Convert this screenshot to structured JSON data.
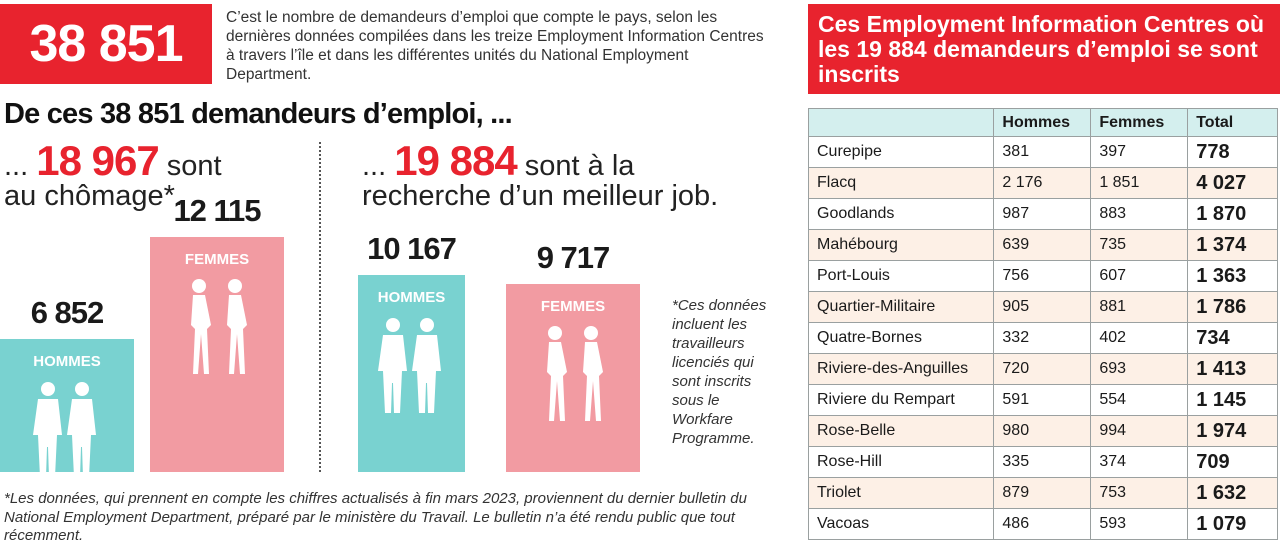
{
  "hero": {
    "number": "38 851",
    "intro": "C’est le nombre de demandeurs d’emploi que compte le pays, selon les dernières données compilées dans les treize Employment Information Centres à travers l’île et dans les différentes unités du National Employment Department."
  },
  "headline": "De ces 38 851 demandeurs d’emploi, ...",
  "left_group": {
    "prefix": "... ",
    "number": "18 967",
    "line1_suffix": " sont",
    "line2": "au chômage*."
  },
  "right_group": {
    "prefix": "... ",
    "number": "19 884",
    "line1_suffix": " sont à la",
    "line2": "recherche d’un meilleur job."
  },
  "note": "*Ces données incluent les travailleurs licenciés qui sont inscrits sous le Workfare Programme.",
  "footnote": "*Les données, qui prennent en compte les chiffres actualisés à fin mars 2023, proviennent du dernier bulletin du National Employment Department, préparé par le ministère du Travail. Le bulletin n’a été rendu public que tout récemment.",
  "table": {
    "title": "Ces Employment Information Centres où les 19 884 demandeurs d’emploi se sont inscrits",
    "headers": [
      "",
      "Hommes",
      "Femmes",
      "Total"
    ]
  },
  "colors": {
    "red": "#e8232e",
    "teal": "#79d2d0",
    "pink": "#f29ba2",
    "header_bg": "#d4efee",
    "row_alt": "#fdf0e6"
  },
  "chart_data": [
    {
      "type": "bar",
      "title": "au chômage",
      "categories": [
        "HOMMES",
        "FEMMES"
      ],
      "values": [
        6852,
        12115
      ],
      "value_labels": [
        "6 852",
        "12 115"
      ],
      "ylim": [
        0,
        12500
      ]
    },
    {
      "type": "bar",
      "title": "à la recherche d’un meilleur job",
      "categories": [
        "HOMMES",
        "FEMMES"
      ],
      "values": [
        10167,
        9717
      ],
      "value_labels": [
        "10 167",
        "9 717"
      ],
      "ylim": [
        0,
        12500
      ]
    },
    {
      "type": "table",
      "columns": [
        "Hommes",
        "Femmes",
        "Total"
      ],
      "rows": [
        {
          "centre": "Curepipe",
          "hommes": "381",
          "femmes": "397",
          "total": "778"
        },
        {
          "centre": "Flacq",
          "hommes": "2 176",
          "femmes": "1 851",
          "total": "4 027"
        },
        {
          "centre": "Goodlands",
          "hommes": "987",
          "femmes": "883",
          "total": "1 870"
        },
        {
          "centre": "Mahébourg",
          "hommes": "639",
          "femmes": "735",
          "total": "1 374"
        },
        {
          "centre": "Port-Louis",
          "hommes": "756",
          "femmes": "607",
          "total": "1 363"
        },
        {
          "centre": "Quartier-Militaire",
          "hommes": "905",
          "femmes": "881",
          "total": "1 786"
        },
        {
          "centre": "Quatre-Bornes",
          "hommes": "332",
          "femmes": "402",
          "total": "734"
        },
        {
          "centre": "Riviere-des-Anguilles",
          "hommes": "720",
          "femmes": "693",
          "total": "1 413"
        },
        {
          "centre": "Riviere du Rempart",
          "hommes": "591",
          "femmes": "554",
          "total": "1 145"
        },
        {
          "centre": "Rose-Belle",
          "hommes": "980",
          "femmes": "994",
          "total": "1 974"
        },
        {
          "centre": "Rose-Hill",
          "hommes": "335",
          "femmes": "374",
          "total": "709"
        },
        {
          "centre": "Triolet",
          "hommes": "879",
          "femmes": "753",
          "total": "1 632"
        },
        {
          "centre": "Vacoas",
          "hommes": "486",
          "femmes": "593",
          "total": "1 079"
        }
      ]
    }
  ]
}
